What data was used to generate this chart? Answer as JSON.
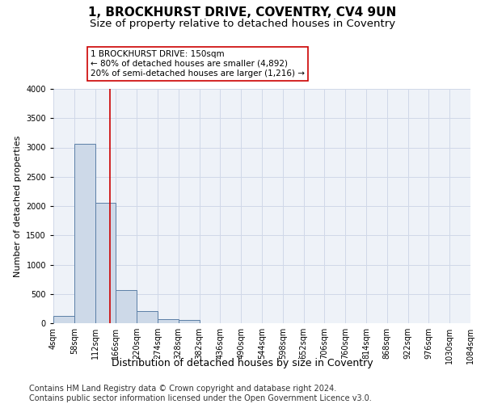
{
  "title": "1, BROCKHURST DRIVE, COVENTRY, CV4 9UN",
  "subtitle": "Size of property relative to detached houses in Coventry",
  "xlabel": "Distribution of detached houses by size in Coventry",
  "ylabel": "Number of detached properties",
  "footer_line1": "Contains HM Land Registry data © Crown copyright and database right 2024.",
  "footer_line2": "Contains public sector information licensed under the Open Government Licence v3.0.",
  "bin_edges": [
    4,
    58,
    112,
    166,
    220,
    274,
    328,
    382,
    436,
    490,
    544,
    598,
    652,
    706,
    760,
    814,
    868,
    922,
    976,
    1030,
    1084
  ],
  "bar_heights": [
    130,
    3060,
    2060,
    560,
    210,
    75,
    55,
    0,
    0,
    0,
    0,
    0,
    0,
    0,
    0,
    0,
    0,
    0,
    0,
    0
  ],
  "bar_color": "#cdd9e8",
  "bar_edge_color": "#5b7fa6",
  "property_line_x": 150,
  "property_line_color": "#cc0000",
  "annotation_line1": "1 BROCKHURST DRIVE: 150sqm",
  "annotation_line2": "← 80% of detached houses are smaller (4,892)",
  "annotation_line3": "20% of semi-detached houses are larger (1,216) →",
  "annotation_box_color": "#cc0000",
  "annotation_box_facecolor": "#ffffff",
  "ylim": [
    0,
    4000
  ],
  "xlim": [
    4,
    1084
  ],
  "title_fontsize": 11,
  "subtitle_fontsize": 9.5,
  "ylabel_fontsize": 8,
  "xlabel_fontsize": 9,
  "tick_fontsize": 7,
  "annotation_fontsize": 7.5,
  "footer_fontsize": 7,
  "grid_color": "#d0d8e8",
  "background_color": "#ffffff",
  "plot_background_color": "#eef2f8"
}
